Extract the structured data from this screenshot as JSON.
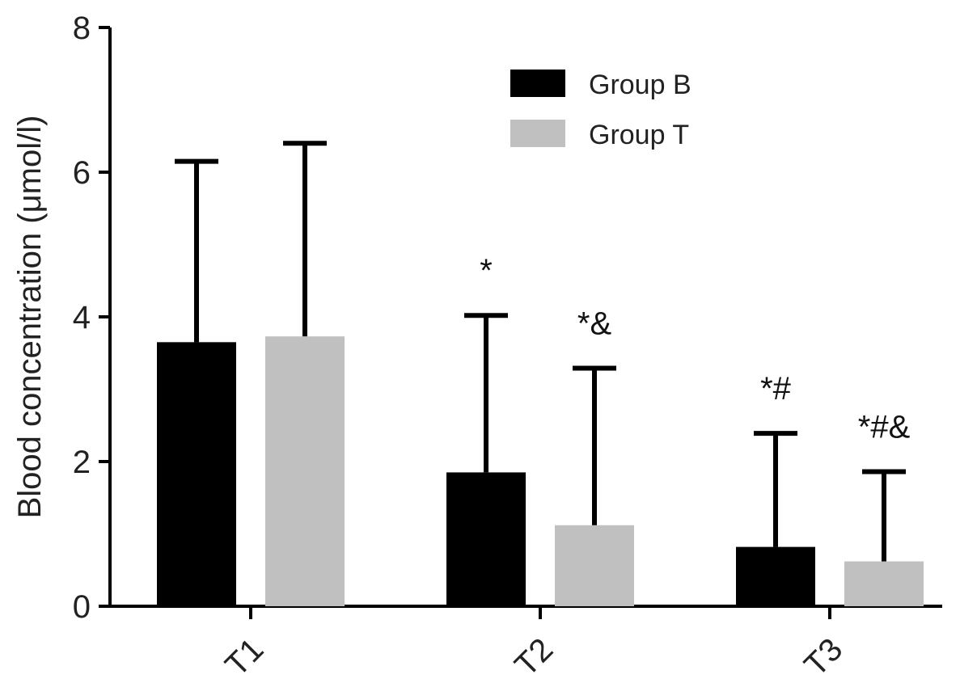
{
  "chart_data": {
    "type": "bar",
    "title": "",
    "xlabel": "",
    "ylabel": "Blood concentration (μmol/l)",
    "categories": [
      "T1",
      "T2",
      "T3"
    ],
    "ylim": [
      0,
      8
    ],
    "yticks": [
      "0",
      "2",
      "4",
      "6",
      "8"
    ],
    "grid": false,
    "legend_position": "top-right",
    "series": [
      {
        "name": "Group B",
        "color": "#000000",
        "values": [
          3.65,
          1.85,
          0.82
        ],
        "errors": [
          2.5,
          2.17,
          1.57
        ],
        "annotations": [
          "",
          "*",
          "*#"
        ]
      },
      {
        "name": "Group T",
        "color": "#c0c0c0",
        "values": [
          3.73,
          1.12,
          0.62
        ],
        "errors": [
          2.67,
          2.17,
          1.24
        ],
        "annotations": [
          "",
          "*&",
          "*#&"
        ]
      }
    ]
  }
}
